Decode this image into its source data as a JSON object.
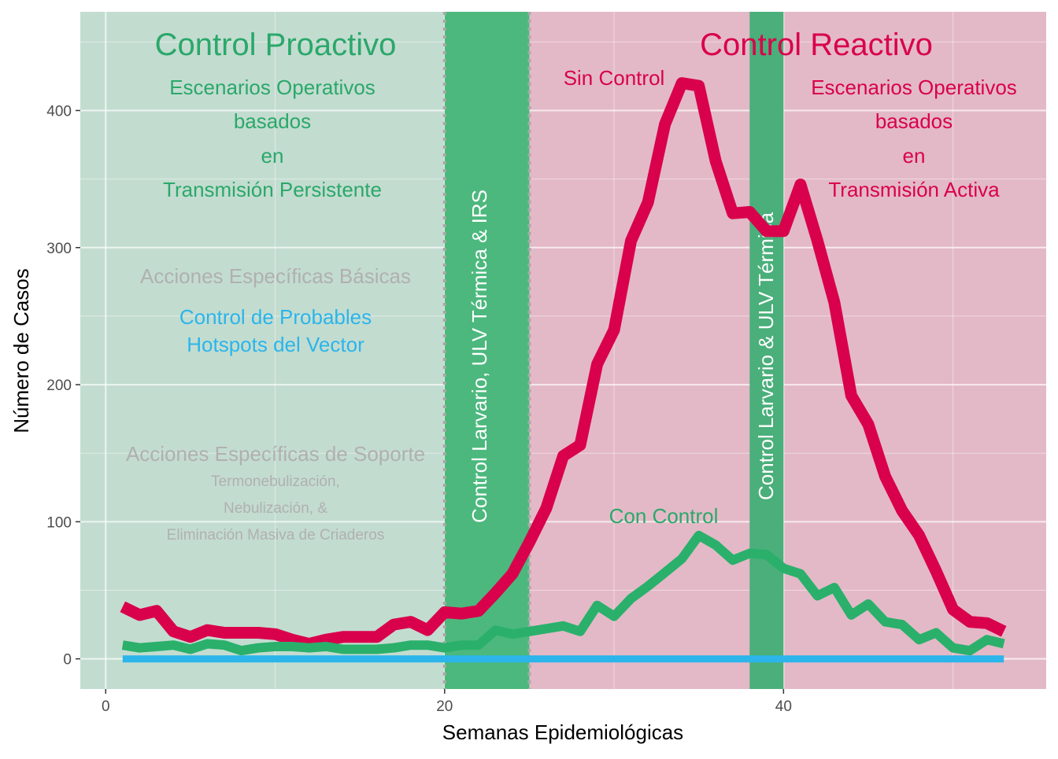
{
  "chart_data": {
    "type": "line",
    "xlabel": "Semanas Epidemiológicas",
    "ylabel": "Número de Casos",
    "xlim": [
      -1.5,
      55.5
    ],
    "ylim": [
      -22,
      472
    ],
    "x_ticks": [
      0,
      20,
      40
    ],
    "y_ticks": [
      0,
      100,
      200,
      300,
      400
    ],
    "grid": true,
    "regions": [
      {
        "name": "proactive",
        "x": [
          -1.5,
          20
        ],
        "color": "#c3dcd0"
      },
      {
        "name": "reactive",
        "x": [
          25,
          55.5
        ],
        "color": "#e3b9c7"
      }
    ],
    "control_bands": [
      {
        "x": [
          20,
          25
        ],
        "label": "Control Larvario, ULV Térmica & IRS",
        "color": "#4cb87d",
        "dotted_edges": true
      },
      {
        "x": [
          38,
          40
        ],
        "label": "Control Larvario & ULV Térmica",
        "color": "#4aaf7a",
        "dotted_edges": false
      }
    ],
    "series": [
      {
        "name": "Sin Control",
        "color": "#d9004c",
        "x": [
          1,
          2,
          3,
          4,
          5,
          6,
          7,
          8,
          9,
          10,
          11,
          12,
          13,
          14,
          15,
          16,
          17,
          18,
          19,
          20,
          21,
          22,
          23,
          24,
          25,
          26,
          27,
          28,
          29,
          30,
          31,
          32,
          33,
          34,
          35,
          36,
          37,
          38,
          39,
          40,
          41,
          42,
          43,
          44,
          45,
          46,
          47,
          48,
          49,
          50,
          51,
          52,
          53
        ],
        "values": [
          38,
          32,
          35,
          20,
          16,
          21,
          19,
          19,
          19,
          18,
          14,
          11,
          14,
          16,
          16,
          16,
          25,
          27,
          21,
          34,
          33,
          35,
          48,
          62,
          85,
          110,
          148,
          156,
          215,
          240,
          305,
          333,
          390,
          420,
          418,
          363,
          325,
          326,
          312,
          312,
          346,
          305,
          260,
          192,
          171,
          133,
          108,
          90,
          64,
          36,
          27,
          26,
          20
        ]
      },
      {
        "name": "Con Control",
        "color": "#2ab06b",
        "x": [
          1,
          2,
          3,
          4,
          5,
          6,
          7,
          8,
          9,
          10,
          11,
          12,
          13,
          14,
          15,
          16,
          17,
          18,
          19,
          20,
          21,
          22,
          23,
          24,
          25,
          26,
          27,
          28,
          29,
          30,
          31,
          32,
          33,
          34,
          35,
          36,
          37,
          38,
          39,
          40,
          41,
          42,
          43,
          44,
          45,
          46,
          47,
          48,
          49,
          50,
          51,
          52,
          53
        ],
        "values": [
          10,
          8,
          9,
          10,
          7,
          11,
          10,
          6,
          8,
          9,
          9,
          8,
          9,
          7,
          7,
          7,
          8,
          10,
          10,
          8,
          10,
          10,
          21,
          18,
          20,
          22,
          24,
          20,
          39,
          31,
          44,
          53,
          63,
          73,
          90,
          83,
          72,
          77,
          76,
          66,
          62,
          46,
          52,
          32,
          40,
          27,
          25,
          14,
          19,
          8,
          6,
          14,
          11
        ]
      },
      {
        "name": "",
        "color": "#2bb5ea",
        "x": [
          1,
          53
        ],
        "values": [
          0,
          0
        ]
      }
    ],
    "annotations": {
      "proactive_title": "Control Proactivo",
      "reactive_title": "Control Reactivo",
      "proactive_scenario": [
        "Escenarios Operativos",
        "basados",
        "en",
        "Transmisión Persistente"
      ],
      "reactive_scenario": [
        "Escenarios Operativos",
        "basados",
        "en",
        "Transmisión Activa"
      ],
      "basic_actions": "Acciones Específicas Básicas",
      "hotspots": [
        "Control de Probables",
        "Hotspots del Vector"
      ],
      "support_actions": "Acciones Específicas de Soporte",
      "support_details": [
        "Termonebulización,",
        "Nebulización, &",
        "Eliminación Masiva de Criaderos"
      ],
      "sin_control_label": "Sin Control",
      "con_control_label": "Con Control"
    },
    "colors": {
      "green_text": "#2aa86a",
      "red_text": "#d9004c",
      "grey_text": "#b0b0b0",
      "blue_text": "#2bb5ea",
      "band_text": "#ffffff",
      "axis_text": "#4d4d4d"
    }
  }
}
